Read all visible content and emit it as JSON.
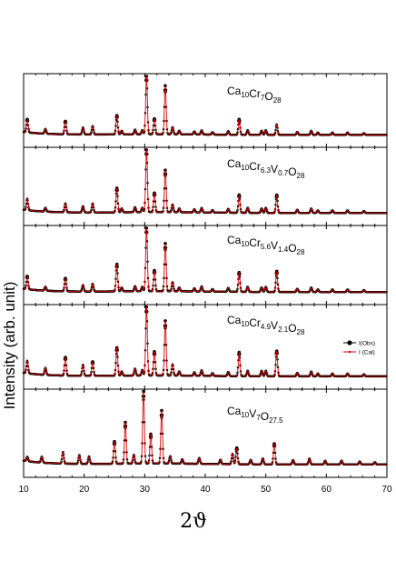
{
  "chart_data": {
    "type": "line",
    "xlabel": "2ϑ",
    "ylabel": "Intensity (arb. unit)",
    "xlim": [
      10,
      70
    ],
    "x_ticks": [
      "10",
      "20",
      "30",
      "40",
      "50",
      "60",
      "70"
    ],
    "legend": {
      "placement": "right of 4th panel",
      "entries": [
        "I(Obs)",
        "I (Cal)"
      ]
    },
    "series_colors": {
      "obs": "#000000",
      "cal": "#d40000"
    },
    "panels": [
      {
        "title": {
          "parts": [
            [
              "Ca",
              false
            ],
            [
              "10",
              true
            ],
            [
              "Cr",
              false
            ],
            [
              "7",
              true
            ],
            [
              "O",
              false
            ],
            [
              "28",
              true
            ]
          ]
        },
        "peaks": [
          [
            10.6,
            0.22
          ],
          [
            13.6,
            0.08
          ],
          [
            16.9,
            0.22
          ],
          [
            19.8,
            0.12
          ],
          [
            21.4,
            0.14
          ],
          [
            25.4,
            0.32
          ],
          [
            26.2,
            0.06
          ],
          [
            28.4,
            0.08
          ],
          [
            29.6,
            0.07
          ],
          [
            30.3,
            1.0
          ],
          [
            31.6,
            0.26
          ],
          [
            33.4,
            0.82
          ],
          [
            34.6,
            0.12
          ],
          [
            35.7,
            0.06
          ],
          [
            38.2,
            0.05
          ],
          [
            39.4,
            0.07
          ],
          [
            41.2,
            0.04
          ],
          [
            43.8,
            0.06
          ],
          [
            45.6,
            0.26
          ],
          [
            47.0,
            0.08
          ],
          [
            49.3,
            0.07
          ],
          [
            50.0,
            0.08
          ],
          [
            51.8,
            0.18
          ],
          [
            55.2,
            0.05
          ],
          [
            57.5,
            0.07
          ],
          [
            58.6,
            0.04
          ],
          [
            61.0,
            0.04
          ],
          [
            63.5,
            0.04
          ],
          [
            66.2,
            0.03
          ]
        ]
      },
      {
        "title": {
          "parts": [
            [
              "Ca",
              false
            ],
            [
              "10",
              true
            ],
            [
              "Cr",
              false
            ],
            [
              "6.3",
              true
            ],
            [
              "V",
              false
            ],
            [
              "0.7",
              true
            ],
            [
              "O",
              false
            ],
            [
              "28",
              true
            ]
          ]
        },
        "peaks": [
          [
            10.6,
            0.18
          ],
          [
            13.6,
            0.06
          ],
          [
            16.9,
            0.14
          ],
          [
            19.8,
            0.1
          ],
          [
            21.4,
            0.14
          ],
          [
            25.4,
            0.38
          ],
          [
            26.2,
            0.06
          ],
          [
            28.4,
            0.08
          ],
          [
            29.6,
            0.07
          ],
          [
            30.3,
            1.0
          ],
          [
            31.6,
            0.3
          ],
          [
            33.4,
            0.66
          ],
          [
            34.6,
            0.12
          ],
          [
            35.7,
            0.06
          ],
          [
            38.2,
            0.05
          ],
          [
            39.4,
            0.07
          ],
          [
            41.2,
            0.04
          ],
          [
            43.8,
            0.06
          ],
          [
            45.6,
            0.28
          ],
          [
            47.0,
            0.08
          ],
          [
            49.3,
            0.07
          ],
          [
            50.0,
            0.08
          ],
          [
            51.8,
            0.28
          ],
          [
            55.2,
            0.05
          ],
          [
            57.5,
            0.07
          ],
          [
            58.6,
            0.04
          ],
          [
            61.0,
            0.04
          ],
          [
            63.5,
            0.04
          ],
          [
            66.2,
            0.03
          ]
        ]
      },
      {
        "title": {
          "parts": [
            [
              "Ca",
              false
            ],
            [
              "10",
              true
            ],
            [
              "Cr",
              false
            ],
            [
              "5.6",
              true
            ],
            [
              "V",
              false
            ],
            [
              "1.4",
              true
            ],
            [
              "O",
              false
            ],
            [
              "28",
              true
            ]
          ]
        },
        "peaks": [
          [
            10.6,
            0.2
          ],
          [
            13.6,
            0.06
          ],
          [
            16.9,
            0.2
          ],
          [
            19.8,
            0.1
          ],
          [
            21.4,
            0.12
          ],
          [
            25.4,
            0.42
          ],
          [
            26.2,
            0.06
          ],
          [
            28.4,
            0.08
          ],
          [
            29.6,
            0.07
          ],
          [
            30.3,
            1.0
          ],
          [
            31.6,
            0.32
          ],
          [
            33.4,
            0.74
          ],
          [
            34.6,
            0.14
          ],
          [
            35.7,
            0.06
          ],
          [
            38.2,
            0.05
          ],
          [
            39.4,
            0.08
          ],
          [
            41.2,
            0.04
          ],
          [
            43.8,
            0.06
          ],
          [
            45.6,
            0.3
          ],
          [
            47.0,
            0.08
          ],
          [
            49.3,
            0.07
          ],
          [
            50.0,
            0.08
          ],
          [
            51.8,
            0.32
          ],
          [
            55.2,
            0.05
          ],
          [
            57.5,
            0.07
          ],
          [
            58.6,
            0.04
          ],
          [
            61.0,
            0.04
          ],
          [
            63.5,
            0.04
          ],
          [
            66.2,
            0.03
          ]
        ]
      },
      {
        "title": {
          "parts": [
            [
              "Ca",
              false
            ],
            [
              "10",
              true
            ],
            [
              "Cr",
              false
            ],
            [
              "4.9",
              true
            ],
            [
              "V",
              false
            ],
            [
              "2.1",
              true
            ],
            [
              "O",
              false
            ],
            [
              "28",
              true
            ]
          ]
        },
        "peaks": [
          [
            10.6,
            0.18
          ],
          [
            13.6,
            0.1
          ],
          [
            16.9,
            0.26
          ],
          [
            19.8,
            0.16
          ],
          [
            21.4,
            0.2
          ],
          [
            25.4,
            0.4
          ],
          [
            26.2,
            0.06
          ],
          [
            28.4,
            0.1
          ],
          [
            29.6,
            0.08
          ],
          [
            30.3,
            1.0
          ],
          [
            31.6,
            0.34
          ],
          [
            33.4,
            0.78
          ],
          [
            34.6,
            0.16
          ],
          [
            35.7,
            0.06
          ],
          [
            38.2,
            0.05
          ],
          [
            39.4,
            0.08
          ],
          [
            41.2,
            0.04
          ],
          [
            43.8,
            0.06
          ],
          [
            45.6,
            0.34
          ],
          [
            47.0,
            0.08
          ],
          [
            49.3,
            0.08
          ],
          [
            50.0,
            0.08
          ],
          [
            51.8,
            0.36
          ],
          [
            55.2,
            0.05
          ],
          [
            57.5,
            0.07
          ],
          [
            58.6,
            0.04
          ],
          [
            61.0,
            0.04
          ],
          [
            63.5,
            0.04
          ],
          [
            66.2,
            0.03
          ]
        ]
      },
      {
        "title": {
          "parts": [
            [
              "Ca",
              false
            ],
            [
              "10",
              true
            ],
            [
              "V",
              false
            ],
            [
              "7",
              true
            ],
            [
              "O",
              false
            ],
            [
              "27.5",
              true
            ]
          ]
        },
        "peaks": [
          [
            10.6,
            0.06
          ],
          [
            13.0,
            0.08
          ],
          [
            16.5,
            0.16
          ],
          [
            19.2,
            0.12
          ],
          [
            20.8,
            0.1
          ],
          [
            25.0,
            0.3
          ],
          [
            26.8,
            0.56
          ],
          [
            28.2,
            0.12
          ],
          [
            29.8,
            1.0
          ],
          [
            31.0,
            0.4
          ],
          [
            32.8,
            0.72
          ],
          [
            34.2,
            0.1
          ],
          [
            36.2,
            0.06
          ],
          [
            39.0,
            0.08
          ],
          [
            42.5,
            0.06
          ],
          [
            44.5,
            0.14
          ],
          [
            45.2,
            0.22
          ],
          [
            47.5,
            0.06
          ],
          [
            49.5,
            0.08
          ],
          [
            51.4,
            0.28
          ],
          [
            54.5,
            0.06
          ],
          [
            57.2,
            0.08
          ],
          [
            59.8,
            0.05
          ],
          [
            62.5,
            0.05
          ],
          [
            65.5,
            0.04
          ],
          [
            68.0,
            0.03
          ]
        ]
      }
    ]
  }
}
